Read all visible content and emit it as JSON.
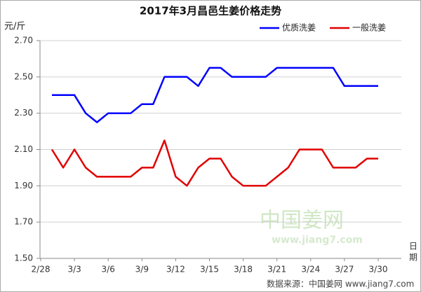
{
  "chart_data": {
    "type": "line",
    "title": "2017年3月昌邑生姜价格走势",
    "y_label": "元/斤",
    "x_label": "日期",
    "source": "数据来源：中国姜网 www.jiang7.com",
    "watermark": "中国姜网",
    "watermark_url": "www.jiang7.com",
    "categories": [
      "2/28",
      null,
      null,
      "3/3",
      null,
      null,
      "3/6",
      null,
      null,
      "3/9",
      null,
      null,
      "3/12",
      null,
      null,
      "3/15",
      null,
      null,
      "3/18",
      null,
      null,
      "3/21",
      null,
      null,
      "3/24",
      null,
      null,
      "3/27",
      null,
      null,
      "3/30"
    ],
    "series": [
      {
        "name": "优质洗姜",
        "color": "#0000ff",
        "values": [
          null,
          2.4,
          2.4,
          2.4,
          2.3,
          2.25,
          2.3,
          2.3,
          2.3,
          2.35,
          2.35,
          2.5,
          2.5,
          2.5,
          2.45,
          2.55,
          2.55,
          2.5,
          2.5,
          2.5,
          2.5,
          2.55,
          2.55,
          2.55,
          2.55,
          2.55,
          2.55,
          2.45,
          2.45,
          2.45,
          2.45
        ]
      },
      {
        "name": "一般洗姜",
        "color": "#e00000",
        "values": [
          null,
          2.1,
          2.0,
          2.1,
          2.0,
          1.95,
          1.95,
          1.95,
          1.95,
          2.0,
          2.0,
          2.15,
          1.95,
          1.9,
          2.0,
          2.05,
          2.05,
          1.95,
          1.9,
          1.9,
          1.9,
          1.95,
          2.0,
          2.1,
          2.1,
          2.1,
          2.0,
          2.0,
          2.0,
          2.05,
          2.05
        ]
      }
    ],
    "ylim": [
      1.5,
      2.7
    ],
    "yticks": [
      {
        "value": 1.5,
        "label": "1.50"
      },
      {
        "value": 1.7,
        "label": "1.70"
      },
      {
        "value": 1.9,
        "label": "1.90"
      },
      {
        "value": 2.1,
        "label": "2.10"
      },
      {
        "value": 2.3,
        "label": "2.30"
      },
      {
        "value": 2.5,
        "label": "2.50"
      },
      {
        "value": 2.7,
        "label": "2.70"
      }
    ],
    "grid": true,
    "legend": "top-right"
  }
}
